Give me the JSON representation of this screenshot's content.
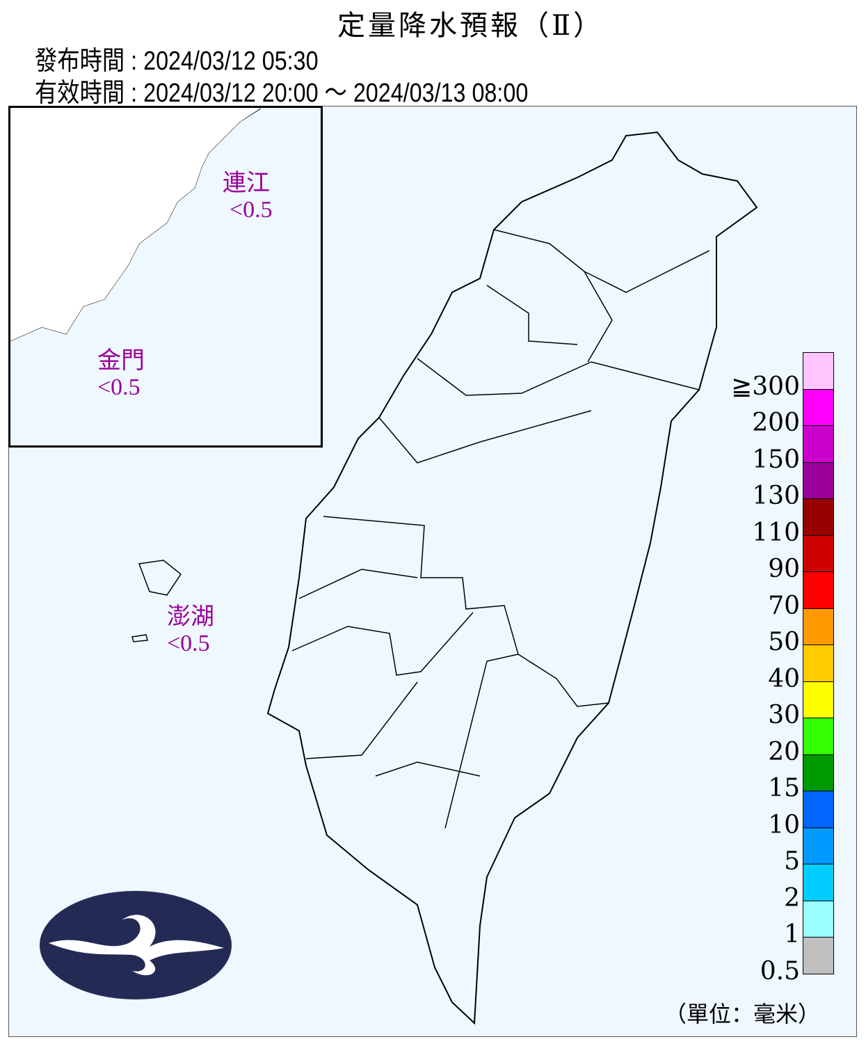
{
  "header": {
    "title": "定量降水預報（Ⅱ）",
    "issue_time": "發布時間 : 2024/03/12 05:30",
    "valid_time": "有效時間 : 2024/03/12 20:00 ～ 2024/03/13 08:00"
  },
  "regions": [
    {
      "name": "連江",
      "value": "<0.5"
    },
    {
      "name": "金門",
      "value": "<0.5"
    },
    {
      "name": "澎湖",
      "value": "<0.5"
    }
  ],
  "legend": {
    "unit": "（單位：毫米）",
    "labels": [
      "≧300",
      "200",
      "150",
      "130",
      "110",
      "90",
      "70",
      "50",
      "40",
      "30",
      "20",
      "15",
      "10",
      "5",
      "2",
      "1",
      "0.5"
    ],
    "colors": [
      "#ffc6fe",
      "#ff00ff",
      "#cc00cc",
      "#990099",
      "#990000",
      "#cc0000",
      "#ff0000",
      "#ff9900",
      "#ffcc00",
      "#ffff00",
      "#33ff00",
      "#009900",
      "#0066ff",
      "#0099ff",
      "#00ccff",
      "#99ffff",
      "#c0c0c0"
    ]
  },
  "colors": {
    "background": "#eef8fe",
    "region_label": "#990099",
    "logo": "#232b55"
  },
  "logo": {
    "icon": "cwa-logo"
  }
}
